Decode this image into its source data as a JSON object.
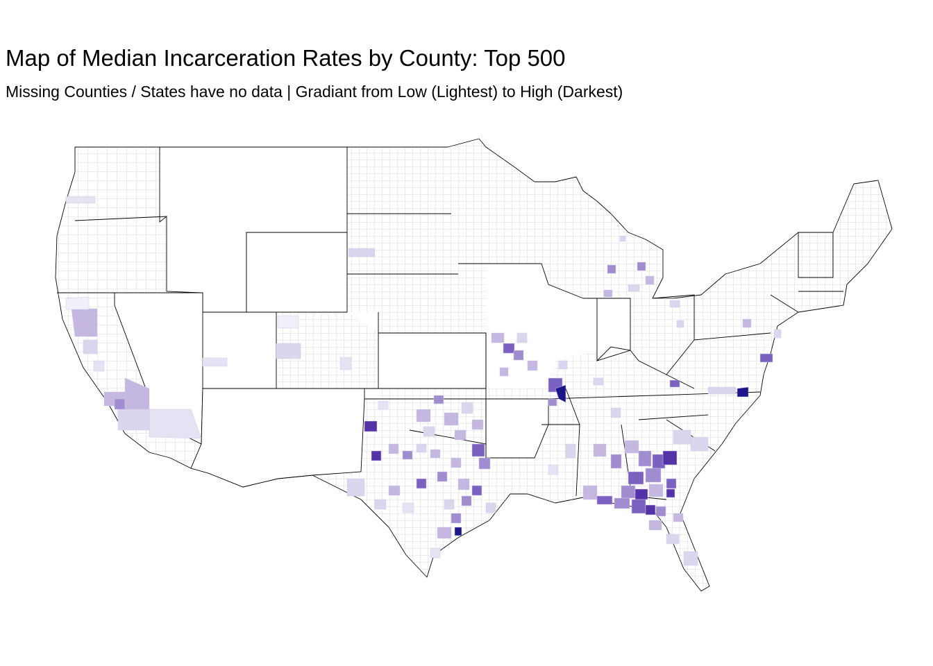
{
  "title": "Map of Median Incarceration Rates by County: Top 500",
  "subtitle": "Missing Counties / States have no data | Gradiant from Low (Lightest) to High (Darkest)",
  "colors": {
    "background": "#ffffff",
    "state_border": "#000000",
    "county_border": "#bdbdbd",
    "gradient": [
      "#f1effa",
      "#dcd5ee",
      "#c4b8e1",
      "#9f8dd0",
      "#7b62c0",
      "#5432a8",
      "#1c168a"
    ]
  }
}
